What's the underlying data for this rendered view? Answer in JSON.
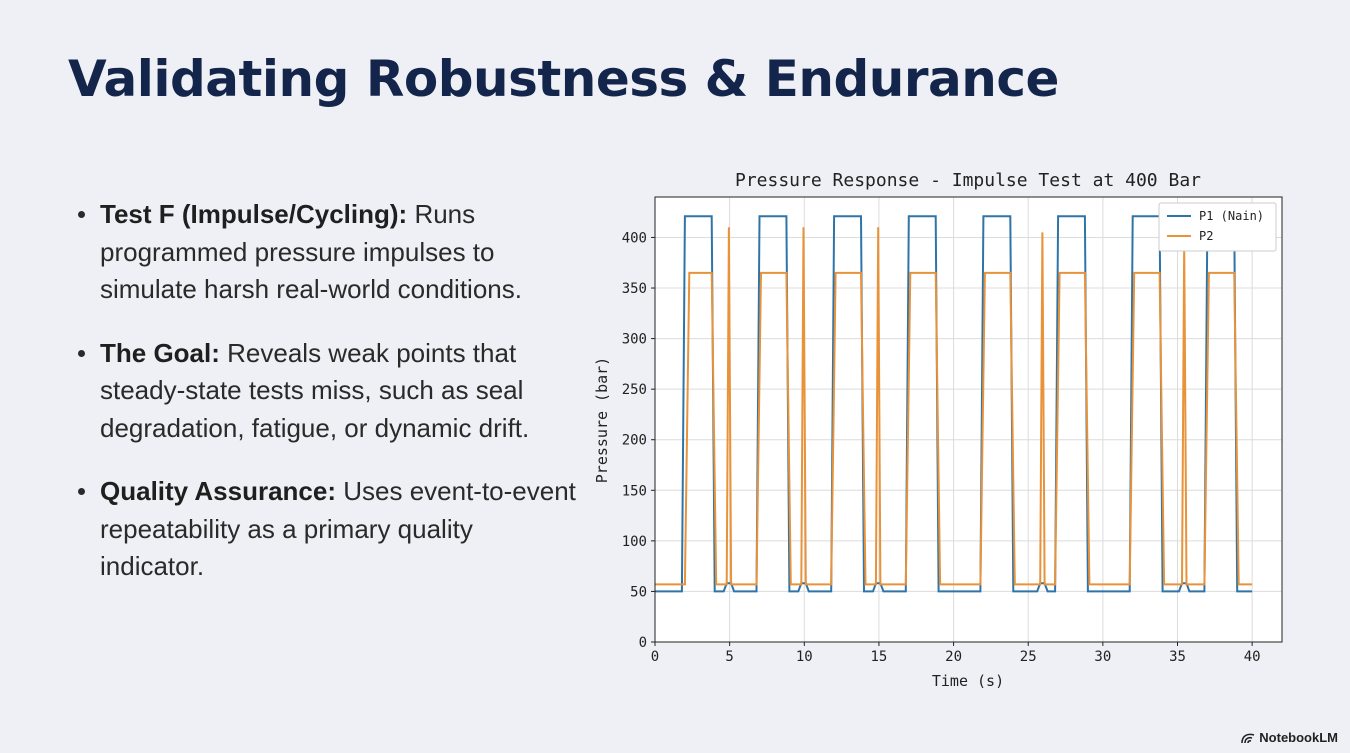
{
  "slide": {
    "title": "Validating Robustness & Endurance",
    "bullets": [
      {
        "bold": "Test F (Impulse/Cycling):",
        "text": " Runs programmed pressure impulses to simulate harsh real-world conditions."
      },
      {
        "bold": "The Goal:",
        "text": " Reveals weak points that steady-state tests miss, such as seal degradation, fatigue, or dynamic drift."
      },
      {
        "bold": "Quality Assurance:",
        "text": " Uses event-to-event repeatability as a primary quality indicator."
      }
    ],
    "brand": "NotebookLM"
  },
  "chart_data": {
    "type": "line",
    "title": "Pressure Response - Impulse Test at 400 Bar",
    "xlabel": "Time (s)",
    "ylabel": "Pressure (bar)",
    "xlim": [
      0,
      42
    ],
    "ylim": [
      0,
      440
    ],
    "xticks": [
      0,
      5,
      10,
      15,
      20,
      25,
      30,
      35,
      40
    ],
    "yticks": [
      0,
      50,
      100,
      150,
      200,
      250,
      300,
      350,
      400
    ],
    "grid": true,
    "legend_position": "top-right",
    "series": [
      {
        "name": "P1 (Nain)",
        "color": "#2e74a8",
        "x": [
          0,
          1.8,
          2.0,
          3.8,
          4.0,
          4.6,
          4.8,
          5.1,
          5.3,
          6.8,
          7.0,
          8.8,
          9.0,
          9.6,
          9.8,
          10.1,
          10.3,
          11.8,
          12.0,
          13.8,
          14.0,
          14.6,
          14.8,
          15.1,
          15.3,
          16.8,
          17.0,
          18.8,
          19.0,
          21.8,
          22.0,
          23.8,
          24.0,
          25.6,
          25.8,
          26.1,
          26.3,
          26.8,
          27.0,
          28.8,
          29.0,
          31.8,
          32.0,
          33.8,
          34.0,
          35.1,
          35.3,
          35.6,
          35.8,
          36.8,
          37.0,
          38.8,
          39.0,
          40.0
        ],
        "y": [
          50,
          50,
          421,
          421,
          50,
          50,
          58,
          58,
          50,
          50,
          421,
          421,
          50,
          50,
          58,
          58,
          50,
          50,
          421,
          421,
          50,
          50,
          58,
          58,
          50,
          50,
          421,
          421,
          50,
          50,
          421,
          421,
          50,
          50,
          58,
          58,
          50,
          50,
          421,
          421,
          50,
          50,
          421,
          421,
          50,
          50,
          58,
          58,
          50,
          50,
          421,
          421,
          50,
          50
        ]
      },
      {
        "name": "P2",
        "color": "#e8923a",
        "x": [
          0,
          2.0,
          2.3,
          3.8,
          4.1,
          4.8,
          4.95,
          5.1,
          6.8,
          7.1,
          8.8,
          9.1,
          9.8,
          9.95,
          10.1,
          11.8,
          12.1,
          13.8,
          14.1,
          14.8,
          14.95,
          15.1,
          16.8,
          17.1,
          18.8,
          19.1,
          21.8,
          22.1,
          23.8,
          24.1,
          25.8,
          25.95,
          26.1,
          26.8,
          27.1,
          28.8,
          29.1,
          31.8,
          32.1,
          33.8,
          34.1,
          35.3,
          35.45,
          35.6,
          36.8,
          37.1,
          38.8,
          39.1,
          40.0
        ],
        "y": [
          57,
          57,
          365,
          365,
          57,
          57,
          410,
          57,
          57,
          365,
          365,
          57,
          57,
          410,
          57,
          57,
          365,
          365,
          57,
          57,
          410,
          57,
          57,
          365,
          365,
          57,
          57,
          365,
          365,
          57,
          57,
          405,
          57,
          57,
          365,
          365,
          57,
          57,
          365,
          365,
          57,
          57,
          395,
          57,
          57,
          365,
          365,
          57,
          57
        ]
      }
    ]
  }
}
